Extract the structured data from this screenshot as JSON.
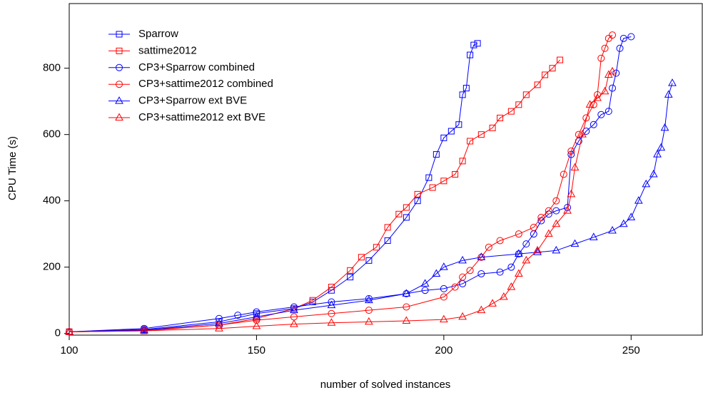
{
  "chart_data": {
    "type": "line",
    "x_label": "number of solved instances",
    "y_label": "CPU Time (s)",
    "xlim": [
      100,
      269
    ],
    "ylim": [
      -5,
      995
    ],
    "xticks": [
      100,
      150,
      200,
      250
    ],
    "yticks": [
      0,
      200,
      400,
      600,
      800
    ],
    "legend": "top-left",
    "series": [
      {
        "name": "Sparrow",
        "color": "#0000ff",
        "marker": "square",
        "x": [
          100,
          120,
          140,
          150,
          160,
          165,
          170,
          175,
          180,
          185,
          190,
          193,
          196,
          198,
          200,
          202,
          204,
          205,
          206,
          207,
          208,
          209
        ],
        "values": [
          5,
          12,
          35,
          60,
          75,
          95,
          130,
          170,
          220,
          280,
          350,
          400,
          470,
          540,
          590,
          610,
          630,
          720,
          740,
          840,
          870,
          875
        ]
      },
      {
        "name": "sattime2012",
        "color": "#ff0000",
        "marker": "square",
        "x": [
          100,
          120,
          140,
          150,
          160,
          165,
          170,
          175,
          178,
          182,
          185,
          188,
          190,
          193,
          197,
          200,
          203,
          205,
          207,
          210,
          213,
          215,
          218,
          220,
          222,
          225,
          227,
          229,
          231
        ],
        "values": [
          5,
          8,
          25,
          45,
          75,
          100,
          140,
          190,
          230,
          260,
          320,
          360,
          380,
          420,
          440,
          460,
          480,
          520,
          580,
          600,
          620,
          650,
          670,
          690,
          720,
          750,
          780,
          800,
          825
        ]
      },
      {
        "name": "CP3+Sparrow combined",
        "color": "#0000ff",
        "marker": "circle",
        "x": [
          100,
          120,
          140,
          145,
          150,
          160,
          170,
          180,
          190,
          195,
          200,
          205,
          210,
          215,
          218,
          220,
          222,
          224,
          226,
          228,
          230,
          233,
          234,
          236,
          238,
          240,
          242,
          244,
          245,
          246,
          247,
          248,
          250
        ],
        "values": [
          5,
          15,
          45,
          55,
          65,
          80,
          95,
          105,
          120,
          130,
          135,
          150,
          180,
          185,
          200,
          240,
          270,
          300,
          340,
          360,
          370,
          380,
          540,
          580,
          610,
          630,
          660,
          670,
          740,
          785,
          860,
          890,
          895
        ]
      },
      {
        "name": "CP3+sattime2012 combined",
        "color": "#ff0000",
        "marker": "circle",
        "x": [
          100,
          120,
          140,
          150,
          160,
          170,
          180,
          190,
          200,
          203,
          205,
          207,
          210,
          212,
          215,
          220,
          224,
          226,
          228,
          230,
          232,
          234,
          236,
          238,
          240,
          241,
          242,
          243,
          244,
          245
        ],
        "values": [
          5,
          10,
          25,
          40,
          50,
          60,
          70,
          80,
          110,
          140,
          170,
          190,
          230,
          260,
          280,
          300,
          320,
          350,
          370,
          400,
          480,
          550,
          600,
          650,
          690,
          720,
          830,
          860,
          890,
          900
        ]
      },
      {
        "name": "CP3+Sparrow ext BVE",
        "color": "#0000ff",
        "marker": "triangle",
        "x": [
          100,
          120,
          140,
          150,
          160,
          170,
          180,
          190,
          195,
          198,
          200,
          205,
          210,
          220,
          225,
          230,
          235,
          240,
          245,
          248,
          250,
          252,
          254,
          256,
          257,
          258,
          259,
          260,
          261
        ],
        "values": [
          5,
          10,
          30,
          50,
          70,
          85,
          100,
          120,
          150,
          180,
          200,
          220,
          230,
          240,
          245,
          250,
          270,
          290,
          310,
          330,
          350,
          400,
          450,
          480,
          540,
          560,
          620,
          720,
          755
        ]
      },
      {
        "name": "CP3+sattime2012 ext BVE",
        "color": "#ff0000",
        "marker": "triangle",
        "x": [
          100,
          120,
          140,
          150,
          160,
          170,
          180,
          190,
          200,
          205,
          210,
          213,
          216,
          218,
          220,
          222,
          225,
          228,
          230,
          233,
          234,
          235,
          237,
          239,
          241,
          243,
          244,
          245
        ],
        "values": [
          5,
          8,
          15,
          22,
          28,
          32,
          35,
          38,
          42,
          50,
          70,
          90,
          110,
          140,
          180,
          220,
          250,
          300,
          330,
          370,
          420,
          500,
          600,
          690,
          710,
          730,
          780,
          790
        ]
      }
    ]
  }
}
